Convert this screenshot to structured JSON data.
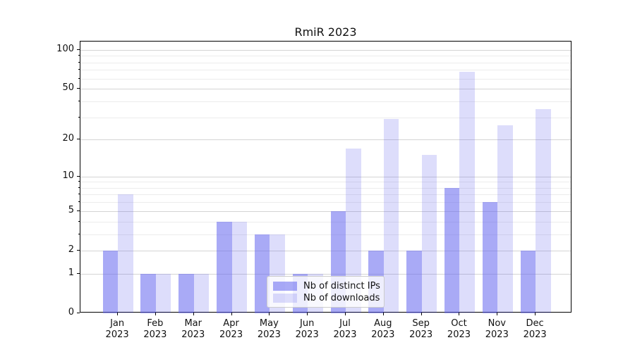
{
  "chart_data": {
    "type": "bar",
    "title": "RmiR 2023",
    "categories": [
      "Jan 2023",
      "Feb 2023",
      "Mar 2023",
      "Apr 2023",
      "May 2023",
      "Jun 2023",
      "Jul 2023",
      "Aug 2023",
      "Sep 2023",
      "Oct 2023",
      "Nov 2023",
      "Dec 2023"
    ],
    "series": [
      {
        "name": "Nb of distinct IPs",
        "values": [
          2,
          1,
          1,
          4,
          3,
          1,
          5,
          2,
          2,
          8,
          6,
          2
        ],
        "color": "rgba(99,100,239,0.55)"
      },
      {
        "name": "Nb of downloads",
        "values": [
          7,
          1,
          1,
          4,
          3,
          1,
          17,
          29,
          15,
          68,
          26,
          35
        ],
        "color": "rgba(99,100,239,0.22)"
      }
    ],
    "yscale": "log1p",
    "ylim": [
      0,
      116
    ],
    "y_major_ticks": [
      0,
      1,
      2,
      5,
      10,
      20,
      50,
      100
    ],
    "y_minor_ticks": [
      3,
      4,
      6,
      7,
      8,
      9,
      30,
      40,
      60,
      70,
      80,
      90
    ],
    "grid": "on",
    "legend_position": "lower center",
    "xlabel": "",
    "ylabel": ""
  },
  "colors": {
    "grid_major": "#d4d4d4",
    "grid_minor": "#ececec",
    "axis": "#000000",
    "bar_base": "#6364ef"
  }
}
